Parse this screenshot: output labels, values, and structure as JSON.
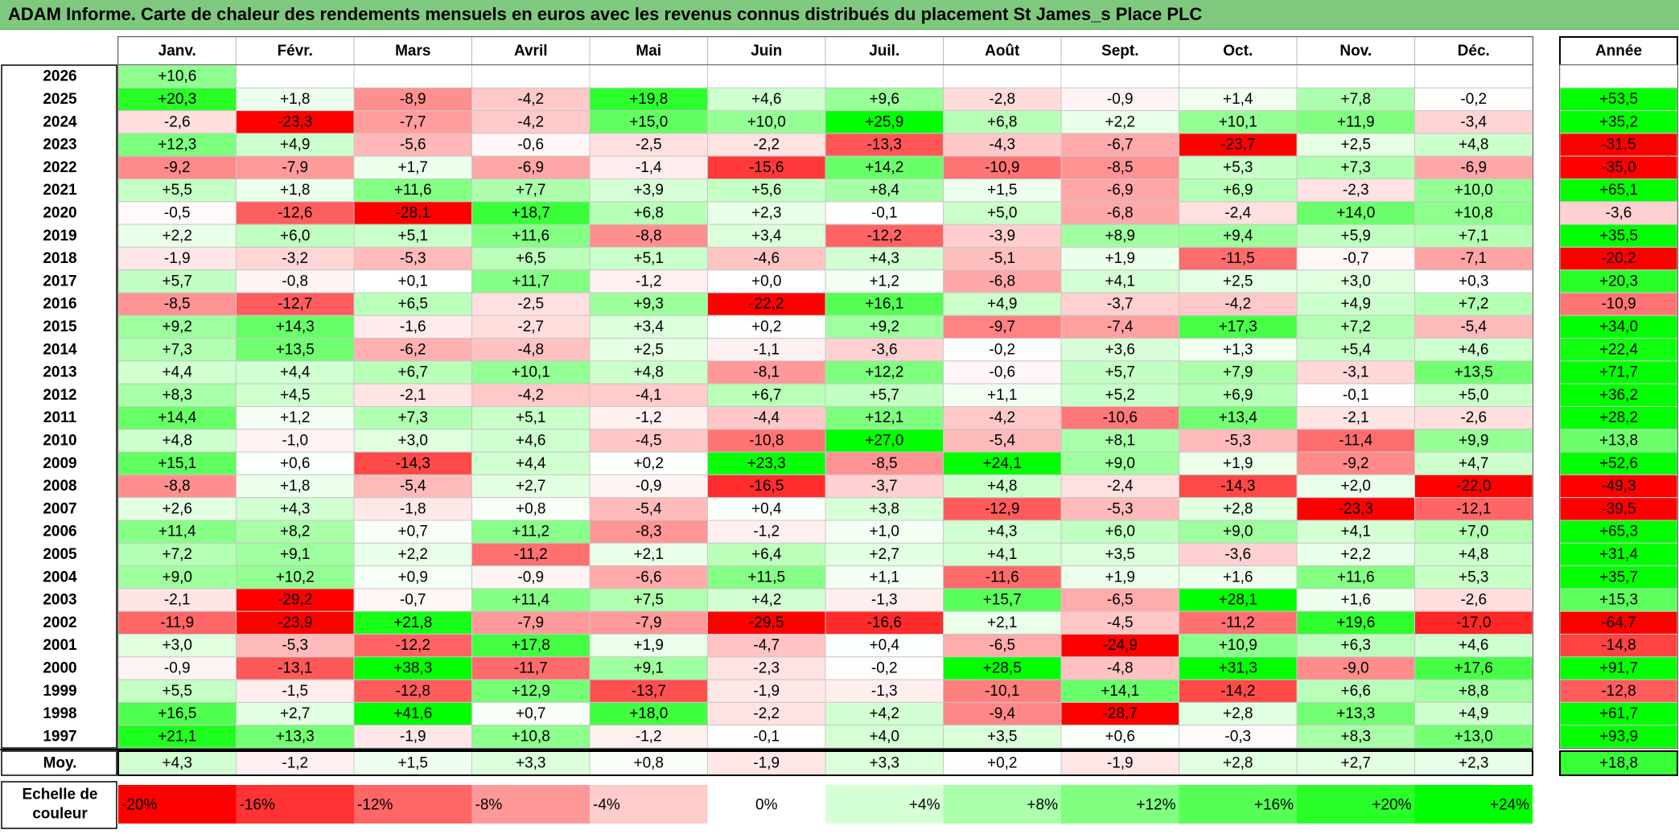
{
  "title": "ADAM Informe. Carte de chaleur des rendements mensuels en euros avec les revenus connus distribués du placement St James_s Place PLC",
  "chart_data": {
    "type": "heatmap",
    "title": "ADAM Informe. Carte de chaleur des rendements mensuels en euros avec les revenus connus distribués du placement St James_s Place PLC",
    "columns": [
      "Janv.",
      "Févr.",
      "Mars",
      "Avril",
      "Mai",
      "Juin",
      "Juil.",
      "Août",
      "Sept.",
      "Oct.",
      "Nov.",
      "Déc."
    ],
    "annual_label": "Année",
    "average_label": "Moy.",
    "rows": [
      {
        "year": "2026",
        "values": [
          "+10,6",
          null,
          null,
          null,
          null,
          null,
          null,
          null,
          null,
          null,
          null,
          null
        ],
        "annual": null
      },
      {
        "year": "2025",
        "values": [
          "+20,3",
          "+1,8",
          "-8,9",
          "-4,2",
          "+19,8",
          "+4,6",
          "+9,6",
          "-2,8",
          "-0,9",
          "+1,4",
          "+7,8",
          "-0,2"
        ],
        "annual": "+53,5"
      },
      {
        "year": "2024",
        "values": [
          "-2,6",
          "-23,3",
          "-7,7",
          "-4,2",
          "+15,0",
          "+10,0",
          "+25,9",
          "+6,8",
          "+2,2",
          "+10,1",
          "+11,9",
          "-3,4"
        ],
        "annual": "+35,2"
      },
      {
        "year": "2023",
        "values": [
          "+12,3",
          "+4,9",
          "-5,6",
          "-0,6",
          "-2,5",
          "-2,2",
          "-13,3",
          "-4,3",
          "-6,7",
          "-23,7",
          "+2,5",
          "+4,8"
        ],
        "annual": "-31,5"
      },
      {
        "year": "2022",
        "values": [
          "-9,2",
          "-7,9",
          "+1,7",
          "-6,9",
          "-1,4",
          "-15,6",
          "+14,2",
          "-10,9",
          "-8,5",
          "+5,3",
          "+7,3",
          "-6,9"
        ],
        "annual": "-35,0"
      },
      {
        "year": "2021",
        "values": [
          "+5,5",
          "+1,8",
          "+11,6",
          "+7,7",
          "+3,9",
          "+5,6",
          "+8,4",
          "+1,5",
          "-6,9",
          "+6,9",
          "-2,3",
          "+10,0"
        ],
        "annual": "+65,1"
      },
      {
        "year": "2020",
        "values": [
          "-0,5",
          "-12,6",
          "-28,1",
          "+18,7",
          "+6,8",
          "+2,3",
          "-0,1",
          "+5,0",
          "-6,8",
          "-2,4",
          "+14,0",
          "+10,8"
        ],
        "annual": "-3,6"
      },
      {
        "year": "2019",
        "values": [
          "+2,2",
          "+6,0",
          "+5,1",
          "+11,6",
          "-8,8",
          "+3,4",
          "-12,2",
          "-3,9",
          "+8,9",
          "+9,4",
          "+5,9",
          "+7,1"
        ],
        "annual": "+35,5"
      },
      {
        "year": "2018",
        "values": [
          "-1,9",
          "-3,2",
          "-5,3",
          "+6,5",
          "+5,1",
          "-4,6",
          "+4,3",
          "-5,1",
          "+1,9",
          "-11,5",
          "-0,7",
          "-7,1"
        ],
        "annual": "-20,2"
      },
      {
        "year": "2017",
        "values": [
          "+5,7",
          "-0,8",
          "+0,1",
          "+11,7",
          "-1,2",
          "+0,0",
          "+1,2",
          "-6,8",
          "+4,1",
          "+2,5",
          "+3,0",
          "+0,3"
        ],
        "annual": "+20,3"
      },
      {
        "year": "2016",
        "values": [
          "-8,5",
          "-12,7",
          "+6,5",
          "-2,5",
          "+9,3",
          "-22,2",
          "+16,1",
          "+4,9",
          "-3,7",
          "-4,2",
          "+4,9",
          "+7,2"
        ],
        "annual": "-10,9"
      },
      {
        "year": "2015",
        "values": [
          "+9,2",
          "+14,3",
          "-1,6",
          "-2,7",
          "+3,4",
          "+0,2",
          "+9,2",
          "-9,7",
          "-7,4",
          "+17,3",
          "+7,2",
          "-5,4"
        ],
        "annual": "+34,0"
      },
      {
        "year": "2014",
        "values": [
          "+7,3",
          "+13,5",
          "-6,2",
          "-4,8",
          "+2,5",
          "-1,1",
          "-3,6",
          "-0,2",
          "+3,6",
          "+1,3",
          "+5,4",
          "+4,6"
        ],
        "annual": "+22,4"
      },
      {
        "year": "2013",
        "values": [
          "+4,4",
          "+4,4",
          "+6,7",
          "+10,1",
          "+4,8",
          "-8,1",
          "+12,2",
          "-0,6",
          "+5,7",
          "+7,9",
          "-3,1",
          "+13,5"
        ],
        "annual": "+71,7"
      },
      {
        "year": "2012",
        "values": [
          "+8,3",
          "+4,5",
          "-2,1",
          "-4,2",
          "-4,1",
          "+6,7",
          "+5,7",
          "+1,1",
          "+5,2",
          "+6,9",
          "-0,1",
          "+5,0"
        ],
        "annual": "+36,2"
      },
      {
        "year": "2011",
        "values": [
          "+14,4",
          "+1,2",
          "+7,3",
          "+5,1",
          "-1,2",
          "-4,4",
          "+12,1",
          "-4,2",
          "-10,6",
          "+13,4",
          "-2,1",
          "-2,6"
        ],
        "annual": "+28,2"
      },
      {
        "year": "2010",
        "values": [
          "+4,8",
          "-1,0",
          "+3,0",
          "+4,6",
          "-4,5",
          "-10,8",
          "+27,0",
          "-5,4",
          "+8,1",
          "-5,3",
          "-11,4",
          "+9,9"
        ],
        "annual": "+13,8"
      },
      {
        "year": "2009",
        "values": [
          "+15,1",
          "+0,6",
          "-14,3",
          "+4,4",
          "+0,2",
          "+23,3",
          "-8,5",
          "+24,1",
          "+9,0",
          "+1,9",
          "-9,2",
          "+4,7"
        ],
        "annual": "+52,6"
      },
      {
        "year": "2008",
        "values": [
          "-8,8",
          "+1,8",
          "-5,4",
          "+2,7",
          "-0,9",
          "-16,5",
          "-3,7",
          "+4,8",
          "-2,4",
          "-14,3",
          "+2,0",
          "-22,0"
        ],
        "annual": "-49,3"
      },
      {
        "year": "2007",
        "values": [
          "+2,6",
          "+4,3",
          "-1,8",
          "+0,8",
          "-5,4",
          "+0,4",
          "+3,8",
          "-12,9",
          "-5,3",
          "+2,8",
          "-23,3",
          "-12,1"
        ],
        "annual": "-39,5"
      },
      {
        "year": "2006",
        "values": [
          "+11,4",
          "+8,2",
          "+0,7",
          "+11,2",
          "-8,3",
          "-1,2",
          "+1,0",
          "+4,3",
          "+6,0",
          "+9,0",
          "+4,1",
          "+7,0"
        ],
        "annual": "+65,3"
      },
      {
        "year": "2005",
        "values": [
          "+7,2",
          "+9,1",
          "+2,2",
          "-11,2",
          "+2,1",
          "+6,4",
          "+2,7",
          "+4,1",
          "+3,5",
          "-3,6",
          "+2,2",
          "+4,8"
        ],
        "annual": "+31,4"
      },
      {
        "year": "2004",
        "values": [
          "+9,0",
          "+10,2",
          "+0,9",
          "-0,9",
          "-6,6",
          "+11,5",
          "+1,1",
          "-11,6",
          "+1,9",
          "+1,6",
          "+11,6",
          "+5,3"
        ],
        "annual": "+35,7"
      },
      {
        "year": "2003",
        "values": [
          "-2,1",
          "-29,2",
          "-0,7",
          "+11,4",
          "+7,5",
          "+4,2",
          "-1,3",
          "+15,7",
          "-6,5",
          "+28,1",
          "+1,6",
          "-2,6"
        ],
        "annual": "+15,3"
      },
      {
        "year": "2002",
        "values": [
          "-11,9",
          "-23,9",
          "+21,8",
          "-7,9",
          "-7,9",
          "-29,5",
          "-16,6",
          "+2,1",
          "-4,5",
          "-11,2",
          "+19,6",
          "-17,0"
        ],
        "annual": "-64,7"
      },
      {
        "year": "2001",
        "values": [
          "+3,0",
          "-5,3",
          "-12,2",
          "+17,8",
          "+1,9",
          "-4,7",
          "+0,4",
          "-6,5",
          "-24,9",
          "+10,9",
          "+6,3",
          "+4,6"
        ],
        "annual": "-14,8"
      },
      {
        "year": "2000",
        "values": [
          "-0,9",
          "-13,1",
          "+38,3",
          "-11,7",
          "+9,1",
          "-2,3",
          "-0,2",
          "+28,5",
          "-4,8",
          "+31,3",
          "-9,0",
          "+17,6"
        ],
        "annual": "+91,7"
      },
      {
        "year": "1999",
        "values": [
          "+5,5",
          "-1,5",
          "-12,8",
          "+12,9",
          "-13,7",
          "-1,9",
          "-1,3",
          "-10,1",
          "+14,1",
          "-14,2",
          "+6,6",
          "+8,8"
        ],
        "annual": "-12,8"
      },
      {
        "year": "1998",
        "values": [
          "+16,5",
          "+2,7",
          "+41,6",
          "+0,7",
          "+18,0",
          "-2,2",
          "+4,2",
          "-9,4",
          "-28,7",
          "+2,8",
          "+13,3",
          "+4,9"
        ],
        "annual": "+61,7"
      },
      {
        "year": "1997",
        "values": [
          "+21,1",
          "+13,3",
          "-1,9",
          "+10,8",
          "-1,2",
          "-0,1",
          "+4,0",
          "+3,5",
          "+0,6",
          "-0,3",
          "+8,3",
          "+13,0"
        ],
        "annual": "+93,9"
      }
    ],
    "averages": [
      "+4,3",
      "-1,2",
      "+1,5",
      "+3,3",
      "+0,8",
      "-1,9",
      "+3,3",
      "+0,2",
      "-1,9",
      "+2,8",
      "+2,7",
      "+2,3"
    ],
    "average_annual": "+18,8",
    "scale": {
      "label": "Echelle de couleur",
      "steps": [
        {
          "label": "-20%",
          "value": -20,
          "color": "#ff0000"
        },
        {
          "label": "-16%",
          "value": -16,
          "color": "#ff3333"
        },
        {
          "label": "-12%",
          "value": -12,
          "color": "#ff6666"
        },
        {
          "label": "-8%",
          "value": -8,
          "color": "#ff9999"
        },
        {
          "label": "-4%",
          "value": -4,
          "color": "#ffcccc"
        },
        {
          "label": "0%",
          "value": 0,
          "color": "#ffffff"
        },
        {
          "label": "+4%",
          "value": 4,
          "color": "#d5ffd5"
        },
        {
          "label": "+8%",
          "value": 8,
          "color": "#aaffaa"
        },
        {
          "label": "+12%",
          "value": 12,
          "color": "#80ff80"
        },
        {
          "label": "+16%",
          "value": 16,
          "color": "#55ff55"
        },
        {
          "label": "+20%",
          "value": 20,
          "color": "#2aff2a"
        },
        {
          "label": "+24%",
          "value": 24,
          "color": "#00ff00"
        }
      ]
    },
    "colors": {
      "title_bg": "#7fc97f",
      "negative_max": "#ff0000",
      "positive_max": "#00ff00",
      "neutral": "#ffffff"
    }
  }
}
